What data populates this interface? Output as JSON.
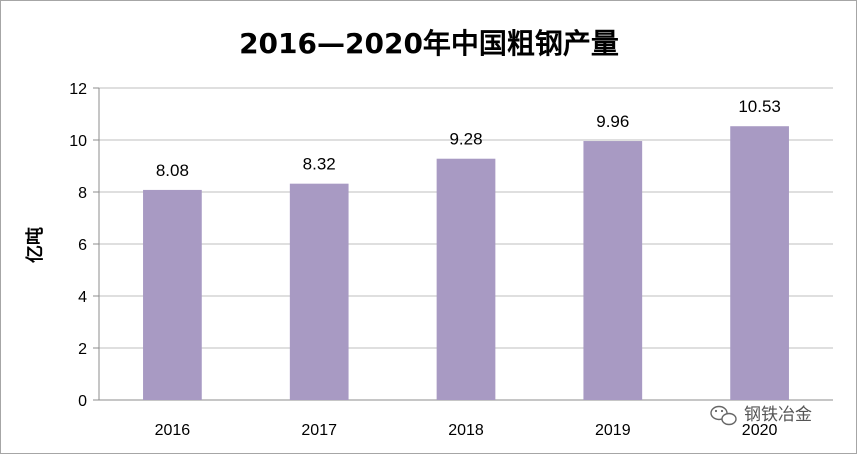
{
  "chart_data": {
    "type": "bar",
    "title": "2016—2020年中国粗钢产量",
    "xlabel": "",
    "ylabel": "亿吨",
    "categories": [
      "2016",
      "2017",
      "2018",
      "2019",
      "2020"
    ],
    "values": [
      8.08,
      8.32,
      9.28,
      9.96,
      10.53
    ],
    "value_labels": [
      "8.08",
      "8.32",
      "9.28",
      "9.96",
      "10.53"
    ],
    "ylim": [
      0,
      12
    ],
    "yticks": [
      "0",
      "2",
      "4",
      "6",
      "8",
      "10",
      "12"
    ],
    "grid": true,
    "legend": "none",
    "bar_color": "#a89ac3"
  },
  "watermark": {
    "text": "钢铁冶金",
    "icon": "wechat-icon"
  }
}
